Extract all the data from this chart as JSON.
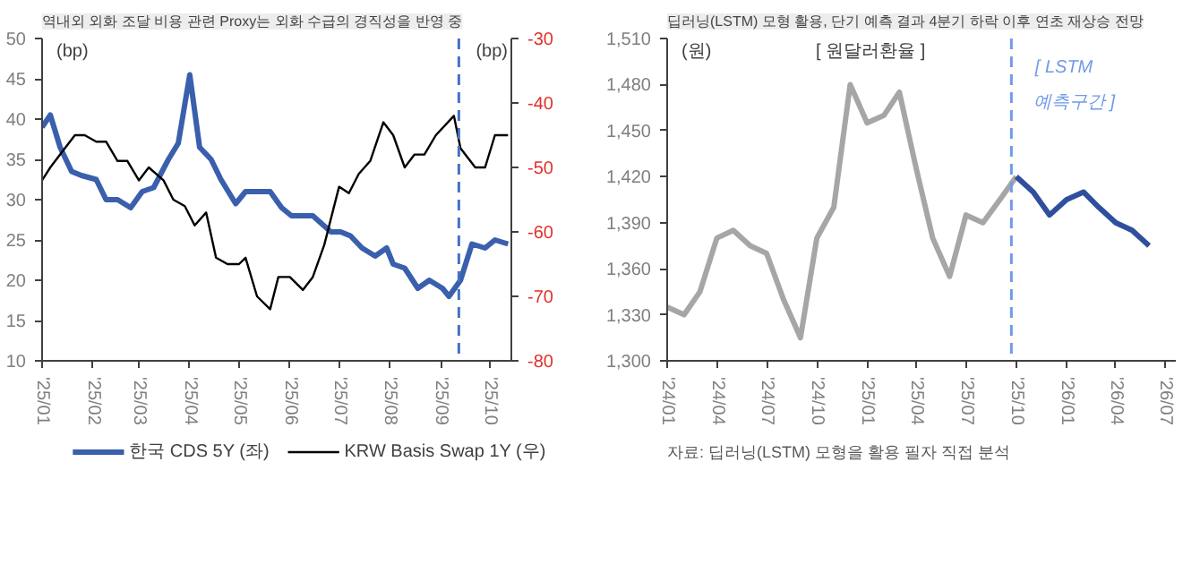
{
  "chart_data": [
    {
      "type": "line",
      "title": "역내외 외화 조달 비용 관련 Proxy는 외화 수급의 경직성을 반영 중",
      "ylabel": "(bp)",
      "y2label": "(bp)",
      "x": [
        "2025-01-01",
        "2025-01-06",
        "2025-01-12",
        "2025-01-19",
        "2025-01-25",
        "2025-02-03",
        "2025-02-09",
        "2025-02-16",
        "2025-02-24",
        "2025-03-03",
        "2025-03-10",
        "2025-03-19",
        "2025-03-25",
        "2025-04-01",
        "2025-04-07",
        "2025-04-14",
        "2025-04-20",
        "2025-04-29",
        "2025-05-05",
        "2025-05-16",
        "2025-05-20",
        "2025-05-27",
        "2025-06-02",
        "2025-06-15",
        "2025-06-26",
        "2025-07-02",
        "2025-07-08",
        "2025-07-15",
        "2025-07-23",
        "2025-07-30",
        "2025-08-03",
        "2025-08-10",
        "2025-08-18",
        "2025-08-25",
        "2025-09-02",
        "2025-09-06",
        "2025-09-13",
        "2025-09-20",
        "2025-09-28",
        "2025-10-04",
        "2025-10-12"
      ],
      "series": [
        {
          "name": "한국 CDS 5Y (좌)",
          "color": "#3a5fad",
          "values": [
            39,
            40.5,
            36.5,
            33.5,
            33,
            32.5,
            30,
            30,
            29,
            31,
            31.5,
            35,
            37,
            45.5,
            36.5,
            35,
            32.5,
            29.5,
            31,
            31,
            31,
            29,
            28,
            28,
            26,
            26,
            25.5,
            24,
            23,
            24,
            22,
            21.5,
            19,
            20,
            19,
            18,
            20,
            24.5,
            24,
            25,
            24.5
          ]
        },
        {
          "name": "KRW Basis Swap 1Y (우)",
          "color": "#000000",
          "axis": "y2",
          "x": [
            "2025-01-01",
            "2025-01-06",
            "2025-01-12",
            "2025-01-21",
            "2025-01-27",
            "2025-02-03",
            "2025-02-09",
            "2025-02-16",
            "2025-02-22",
            "2025-03-01",
            "2025-03-07",
            "2025-03-16",
            "2025-03-22",
            "2025-03-29",
            "2025-04-04",
            "2025-04-11",
            "2025-04-17",
            "2025-04-24",
            "2025-05-01",
            "2025-05-05",
            "2025-05-12",
            "2025-05-20",
            "2025-05-25",
            "2025-06-01",
            "2025-06-09",
            "2025-06-15",
            "2025-06-22",
            "2025-07-01",
            "2025-07-07",
            "2025-07-13",
            "2025-07-20",
            "2025-07-28",
            "2025-08-03",
            "2025-08-10",
            "2025-08-16",
            "2025-08-22",
            "2025-08-29",
            "2025-09-09",
            "2025-09-13",
            "2025-09-22",
            "2025-09-28",
            "2025-10-04",
            "2025-10-12"
          ],
          "values": [
            -52,
            -50,
            -48,
            -45,
            -45,
            -46,
            -46,
            -49,
            -49,
            -52,
            -50,
            -52,
            -55,
            -56,
            -59,
            -57,
            -64,
            -65,
            -65,
            -64,
            -70,
            -72,
            -67,
            -67,
            -69,
            -67,
            -62,
            -53,
            -54,
            -51,
            -49,
            -43,
            -45,
            -50,
            -48,
            -48,
            -45,
            -42,
            -47,
            -50,
            -50,
            -45,
            -45
          ]
        }
      ],
      "xlim": [
        "2025-01-01",
        "2025-10-14"
      ],
      "xticks": [
        {
          "value": "2025-01-01",
          "label": "'25/01"
        },
        {
          "value": "2025-02-01",
          "label": "'25/02"
        },
        {
          "value": "2025-03-01",
          "label": "'25/03"
        },
        {
          "value": "2025-04-01",
          "label": "'25/04"
        },
        {
          "value": "2025-05-01",
          "label": "'25/05"
        },
        {
          "value": "2025-06-01",
          "label": "'25/06"
        },
        {
          "value": "2025-07-01",
          "label": "'25/07"
        },
        {
          "value": "2025-08-01",
          "label": "'25/08"
        },
        {
          "value": "2025-09-01",
          "label": "'25/09"
        },
        {
          "value": "2025-10-01",
          "label": "'25/10"
        }
      ],
      "ylim": [
        10,
        50
      ],
      "yticks": [
        10,
        15,
        20,
        25,
        30,
        35,
        40,
        45,
        50
      ],
      "y2lim": [
        -80,
        -30
      ],
      "y2ticks": [
        -80,
        -70,
        -60,
        -50,
        -40,
        -30
      ],
      "ref_lines": [
        {
          "axis": "x",
          "value": "2025-09-12",
          "color": "#4472c4",
          "line_style": "dashed"
        }
      ],
      "legend": "bottom"
    },
    {
      "type": "line",
      "title": "딥러닝(LSTM) 모형 활용, 단기 예측 결과 4분기 하락 이후 연초 재상승 전망",
      "ylabel": "(원)",
      "annotations": [
        "[ 원달러환율 ]",
        "[ LSTM",
        "예측구간 ]",
        "자료: 딥러닝(LSTM) 모형을 활용 필자 직접 분석"
      ],
      "series": [
        {
          "color": "#a6a6a6",
          "x": [
            "2024-01",
            "2024-02",
            "2024-03",
            "2024-04",
            "2024-05",
            "2024-06",
            "2024-07",
            "2024-08",
            "2024-09",
            "2024-10",
            "2024-11",
            "2024-12",
            "2025-01",
            "2025-02",
            "2025-03",
            "2025-04",
            "2025-05",
            "2025-06",
            "2025-07",
            "2025-08",
            "2025-09",
            "2025-10"
          ],
          "values": [
            1335,
            1330,
            1345,
            1380,
            1385,
            1375,
            1370,
            1340,
            1315,
            1380,
            1400,
            1480,
            1455,
            1460,
            1475,
            1425,
            1380,
            1355,
            1395,
            1390,
            1405,
            1420
          ]
        },
        {
          "color": "#2f4f9e",
          "x": [
            "2025-10",
            "2025-11",
            "2025-12",
            "2026-01",
            "2026-02",
            "2026-03",
            "2026-04",
            "2026-05",
            "2026-06"
          ],
          "values": [
            1420,
            1410,
            1395,
            1405,
            1410,
            1400,
            1390,
            1385,
            1375
          ]
        }
      ],
      "xlim": [
        "2024-01-01",
        "2026-07-20"
      ],
      "xticks": [
        {
          "value": "2024-01",
          "label": "'24/01"
        },
        {
          "value": "2024-04",
          "label": "'24/04"
        },
        {
          "value": "2024-07",
          "label": "'24/07"
        },
        {
          "value": "2024-10",
          "label": "'24/10"
        },
        {
          "value": "2025-01",
          "label": "'25/01"
        },
        {
          "value": "2025-04",
          "label": "'25/04"
        },
        {
          "value": "2025-07",
          "label": "'25/07"
        },
        {
          "value": "2025-10",
          "label": "'25/10"
        },
        {
          "value": "2026-01",
          "label": "'26/01"
        },
        {
          "value": "2026-04",
          "label": "'26/04"
        },
        {
          "value": "2026-07",
          "label": "'26/07"
        }
      ],
      "ylim": [
        1300,
        1510
      ],
      "yticks": [
        {
          "value": 1300,
          "label": "1,300"
        },
        {
          "value": 1330,
          "label": "1,330"
        },
        {
          "value": 1360,
          "label": "1,360"
        },
        {
          "value": 1390,
          "label": "1,390"
        },
        {
          "value": 1420,
          "label": "1,420"
        },
        {
          "value": 1450,
          "label": "1,450"
        },
        {
          "value": 1480,
          "label": "1,480"
        },
        {
          "value": 1510,
          "label": "1,510"
        }
      ],
      "ref_lines": [
        {
          "axis": "x",
          "value": "2025-09-22",
          "color": "#6f9be8",
          "line_style": "dashed"
        }
      ]
    }
  ]
}
